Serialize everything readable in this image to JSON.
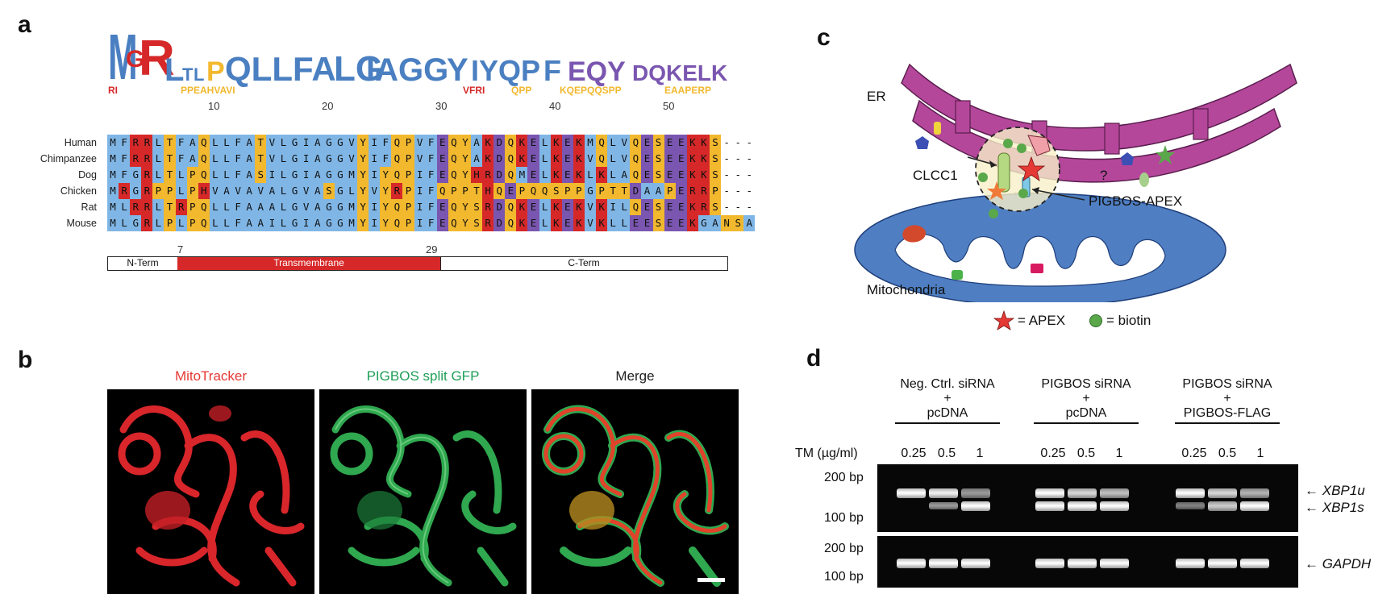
{
  "panels": {
    "a": "a",
    "b": "b",
    "c": "c",
    "d": "d"
  },
  "panel_a": {
    "positions": [
      "10",
      "20",
      "30",
      "40",
      "50"
    ],
    "residue_count_note": "",
    "sequences": [
      {
        "species": "Human",
        "seq": "MFRRLTFAQLLFATVLGIAGGVYIFQPVFEQYAKDQKELKEKMQLVQESEEKKS---"
      },
      {
        "species": "Chimpanzee",
        "seq": "MFRRLTFAQLLFATVLGIAGGVYIFQPVFEQYAKDQKELKEKVQLVQESEEKKS---"
      },
      {
        "species": "Dog",
        "seq": "MFGRLTLPQLLFASILGIAGGMYIYQPIFEQYHRDQMELKEKLKLAQESEEKKS---"
      },
      {
        "species": "Chicken",
        "seq": "MRGRPPLPHVAVAVALGVASGLYVYRPIFQPPTHQEPQQSPPGPTTDAAPERRP---"
      },
      {
        "species": "Rat",
        "seq": "MLRRLTRPQLLFAAALGVAGGMYIYQPIFEQYSRDQKELKEKVKILQESEEKRS---"
      },
      {
        "species": "Mouse",
        "seq": "MLGRLPLPQLLFAAILGIAGGMYIYQPIFEQYSRDQKELKEKVKLLEESEEKGANSA"
      }
    ],
    "marker_7": "7",
    "marker_29": "29",
    "domains": {
      "nterm": "N-Term",
      "tm": "Transmembrane",
      "cterm": "C-Term"
    },
    "colors": {
      "hydrophobic": "#7fb6e6",
      "positive": "#d62828",
      "negative": "#7a56b0",
      "polar": "#f2b82e",
      "transmembrane": "#d62828"
    }
  },
  "panel_b": {
    "titles": [
      "MitoTracker",
      "PIGBOS split GFP",
      "Merge"
    ],
    "title_colors": [
      "#e53935",
      "#1e9e57",
      "#222222"
    ]
  },
  "panel_c": {
    "er": "ER",
    "clcc1": "CLCC1",
    "question": "?",
    "pigbos_apex": "PIGBOS-APEX",
    "mitochondria": "Mitochondria",
    "legend_apex": "= APEX",
    "legend_biotin": "= biotin",
    "biotin_symbol": "B",
    "colors": {
      "er": "#b5479b",
      "mito": "#4f7fc2",
      "apex": "#e53935",
      "biotin": "#5aa84a"
    }
  },
  "panel_d": {
    "groups": [
      {
        "line1": "Neg. Ctrl. siRNA",
        "plus": "+",
        "line2": "pcDNA"
      },
      {
        "line1": "PIGBOS siRNA",
        "plus": "+",
        "line2": "pcDNA"
      },
      {
        "line1": "PIGBOS siRNA",
        "plus": "+",
        "line2": "PIGBOS-FLAG"
      }
    ],
    "tm_label": "TM (µg/ml)",
    "doses": [
      "0.25",
      "0.5",
      "1"
    ],
    "markers_top": [
      "200 bp",
      "100 bp"
    ],
    "markers_bottom": [
      "200 bp",
      "100 bp"
    ],
    "genes": {
      "xbp1u": "XBP1u",
      "xbp1s": "XBP1s",
      "gapdh": "GAPDH"
    },
    "arrow": "←"
  }
}
